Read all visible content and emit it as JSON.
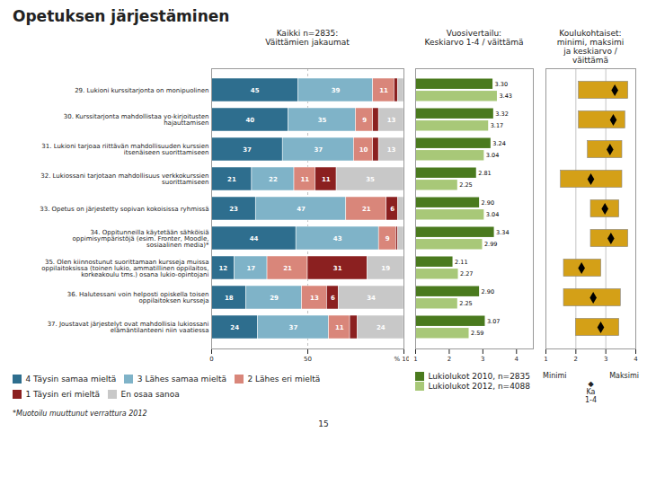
{
  "chart_data": [
    {
      "type": "bar",
      "title": "Opetuksen järjestäminen",
      "subtitle": "Kaikki n=2835:\nVäittämien jakaumat",
      "orientation": "horizontal",
      "stacked": true,
      "categories": [
        "29. Lukioni kurssitarjonta on monipuolinen",
        "30. Kurssitarjonta mahdollistaa yo-kirjoitusten\nhajauttamisen",
        "31. Lukioni tarjoaa riittävän mahdollisuuden kurssien\nitsenäiseen suorittamiseen",
        "32. Lukiossani tarjotaan mahdollisuus verkkokurssien\nsuorittamiseen",
        "33. Opetus on järjestetty sopivan kokoisissa ryhmissä",
        "34. Oppitunneilla käytetään sähköisiä\noppimisympäristöjä (esim. Fronter, Moodle,\nsosiaalinen media)*",
        "35. Olen kiinnostunut suorittamaan kursseja muissa\noppilaitoksissa (toinen lukio, ammatillinen oppilaitos,\nkorkeakoulu tms.) osana lukio-opintojani",
        "36. Halutessani voin helposti opiskella toisen\noppilaitoksen kursseja",
        "37. Joustavat järjestelyt ovat mahdollisia lukiossani\nelämäntilanteeni niin vaatiessa"
      ],
      "series": [
        {
          "name": "4 Täysin samaa mieltä",
          "color": "#2E6E8E",
          "values": [
            45,
            40,
            37,
            21,
            23,
            44,
            12,
            18,
            24
          ],
          "value_labels": [
            "45",
            "40",
            "37",
            "21",
            "23",
            "44",
            "12",
            "18",
            "24"
          ]
        },
        {
          "name": "3 Lähes samaa mieltä",
          "color": "#7FB3C8",
          "values": [
            39,
            35,
            37,
            22,
            47,
            43,
            17,
            29,
            37
          ],
          "value_labels": [
            "39",
            "35",
            "37",
            "22",
            "47",
            "43",
            "17",
            "29",
            "37"
          ]
        },
        {
          "name": "2 Lähes eri mieltä",
          "color": "#D9867A",
          "values": [
            11,
            9,
            10,
            11,
            21,
            9,
            21,
            13,
            11
          ],
          "value_labels": [
            "11",
            "9",
            "10",
            "11",
            "21",
            "9",
            "21",
            "13",
            "11"
          ]
        },
        {
          "name": "1 Täysin eri mieltä",
          "color": "#8B2020",
          "values": [
            2,
            3,
            3,
            11,
            6,
            1,
            31,
            6,
            4
          ],
          "value_labels": [
            null,
            null,
            null,
            "11",
            "6",
            null,
            "31",
            "6",
            null
          ]
        },
        {
          "name": "En osaa sanoa",
          "color": "#C8C8C8",
          "values": [
            3,
            13,
            13,
            35,
            3,
            3,
            19,
            34,
            24
          ],
          "value_labels": [
            null,
            "13",
            "13",
            "35",
            null,
            null,
            "19",
            "34",
            "24"
          ]
        }
      ],
      "data_labels": true,
      "xlim": [
        0,
        100
      ],
      "xticks": [
        0,
        50,
        {
          "value": 100,
          "label": "% 100"
        }
      ],
      "grid": true,
      "annotations": [
        "*Muotoilu muuttunut verrattura 2012",
        "15"
      ]
    },
    {
      "type": "bar",
      "subtitle": "Vuosivertailu:\nKeskiarvo 1-4 / väittämä",
      "orientation": "horizontal",
      "categories": [
        "29. Lukioni kurssitarjonta on monipuolinen",
        "30. Kurssitarjonta mahdollistaa yo-kirjoitusten\nhajauttamisen",
        "31. Lukioni tarjoaa riittävän mahdollisuuden kurssien\nitsenäiseen suorittamiseen",
        "32. Lukiossani tarjotaan mahdollisuus verkkokurssien\nsuorittamiseen",
        "33. Opetus on järjestetty sopivan kokoisissa ryhmissä",
        "34. Oppitunneilla käytetään sähköisiä\noppimisympäristöjä (esim. Fronter, Moodle,\nsosiaalinen media)*",
        "35. Olen kiinnostunut suorittamaan kursseja muissa\noppilaitoksissa (toinen lukio, ammatillinen oppilaitos,\nkorkeakoulu tms.) osana lukio-opintojani",
        "36. Halutessani voin helposti opiskella toisen\noppilaitoksen kursseja",
        "37. Joustavat järjestelyt ovat mahdollisia lukiossani\nelämäntilanteeni niin vaatiessa"
      ],
      "tick_labels": "x",
      "series": [
        {
          "name": "Lukiolukot 2010, n=2835",
          "color": "#4A7A1E",
          "values": [
            3.3,
            3.32,
            3.24,
            2.81,
            2.9,
            3.34,
            2.11,
            2.9,
            3.07
          ],
          "value_labels": [
            "3.30",
            "3.32",
            "3.24",
            "2.81",
            "2.90",
            "3.34",
            "2.11",
            "2.90",
            "3.07"
          ]
        },
        {
          "name": "Lukiolukot 2012, n=4088",
          "color": "#A8C878",
          "values": [
            3.43,
            3.17,
            3.04,
            2.25,
            3.04,
            2.99,
            2.27,
            2.25,
            2.59
          ],
          "value_labels": [
            "3.43",
            "3.17",
            "3.04",
            "2.25",
            "3.04",
            "2.99",
            "2.27",
            "2.25",
            "2.59"
          ]
        }
      ],
      "data_labels": true,
      "xlim": [
        1,
        4.5
      ],
      "xticks": [
        1,
        2,
        3,
        4
      ]
    },
    {
      "type": "range",
      "subtitle": "Koulukohtaiset:\nminimi, maksimi\nja keskiarvo / väittämä",
      "orientation": "horizontal",
      "categories": [
        "29. Lukioni kurssitarjonta on monipuolinen",
        "30. Kurssitarjonta mahdollistaa yo-kirjoitusten\nhajauttamisen",
        "31. Lukioni tarjoaa riittävän mahdollisuuden kurssien\nitsenäiseen suorittamiseen",
        "32. Lukiossani tarjotaan mahdollisuus verkkokurssien\nsuorittamiseen",
        "33. Opetus on järjestetty sopivan kokoisissa ryhmissä",
        "34. Oppitunneilla käytetään sähköisiä\noppimisympäristöjä (esim. Fronter, Moodle,\nsosiaalinen media)*",
        "35. Olen kiinnostunut suorittamaan kursseja muissa\noppilaitoksissa (toinen lukio, ammatillinen oppilaitos,\nkorkeakoulu tms.) osana lukio-opintojani",
        "36. Halutessani voin helposti opiskella toisen\noppilaitoksen kursseja",
        "37. Joustavat järjestelyt ovat mahdollisia lukiossani\nelämäntilanteeni niin vaatiessa"
      ],
      "tick_labels": "x",
      "min": [
        2.1,
        2.1,
        2.4,
        1.5,
        2.5,
        2.5,
        1.6,
        1.6,
        2.0
      ],
      "max": [
        3.75,
        3.65,
        3.55,
        3.55,
        3.45,
        3.75,
        2.85,
        3.5,
        3.45
      ],
      "values": [
        3.3,
        3.25,
        3.14,
        2.5,
        2.97,
        3.17,
        2.19,
        2.58,
        2.83
      ],
      "color": "#D4A017",
      "marker": "diamond",
      "xlim": [
        1,
        4
      ],
      "xticks": [
        1,
        2,
        3,
        4
      ],
      "grid": true,
      "annotations": [
        "Minimi",
        "Maksimi",
        "◆",
        "Ka\n1-4"
      ]
    }
  ]
}
